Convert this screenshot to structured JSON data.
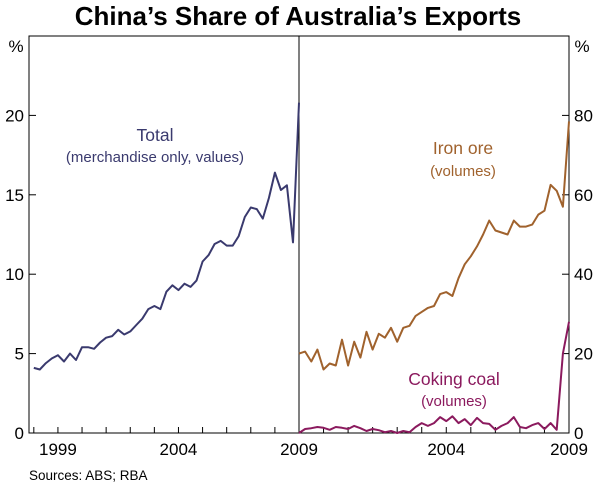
{
  "chart_data": [
    {
      "type": "line",
      "title": "China’s Share of Australia’s Exports",
      "unit_label": "%",
      "x_tick_labels": [
        "1999",
        "2004",
        "2009"
      ],
      "x_range": [
        1997.8,
        2009.0
      ],
      "ylim": [
        0,
        25
      ],
      "y_ticks": [
        0,
        5,
        10,
        15,
        20
      ],
      "grid": false,
      "series": [
        {
          "name": "Total",
          "annotation": [
            "Total",
            "(merchandise only, values)"
          ],
          "color": "#3a3a6e",
          "x": [
            1998.0,
            1998.25,
            1998.5,
            1998.75,
            1999.0,
            1999.25,
            1999.5,
            1999.75,
            2000.0,
            2000.25,
            2000.5,
            2000.75,
            2001.0,
            2001.25,
            2001.5,
            2001.75,
            2002.0,
            2002.25,
            2002.5,
            2002.75,
            2003.0,
            2003.25,
            2003.5,
            2003.75,
            2004.0,
            2004.25,
            2004.5,
            2004.75,
            2005.0,
            2005.25,
            2005.5,
            2005.75,
            2006.0,
            2006.25,
            2006.5,
            2006.75,
            2007.0,
            2007.25,
            2007.5,
            2007.75,
            2008.0,
            2008.25,
            2008.5,
            2008.75,
            2009.0
          ],
          "values": [
            4.1,
            4.0,
            4.4,
            4.7,
            4.9,
            4.5,
            5.0,
            4.6,
            5.4,
            5.4,
            5.3,
            5.7,
            6.0,
            6.1,
            6.5,
            6.2,
            6.4,
            6.8,
            7.2,
            7.8,
            8.0,
            7.8,
            8.9,
            9.3,
            9.0,
            9.4,
            9.2,
            9.6,
            10.8,
            11.2,
            11.9,
            12.1,
            11.8,
            11.8,
            12.4,
            13.6,
            14.2,
            14.1,
            13.5,
            14.8,
            16.4,
            15.3,
            15.6,
            12.0,
            20.8
          ]
        }
      ]
    },
    {
      "type": "line",
      "unit_label": "%",
      "x_tick_labels": [
        "2004",
        "2009"
      ],
      "x_range": [
        1998.0,
        2009.0
      ],
      "ylim": [
        0,
        100
      ],
      "y_ticks": [
        0,
        20,
        40,
        60,
        80
      ],
      "grid": false,
      "series": [
        {
          "name": "Iron ore",
          "annotation": [
            "Iron ore",
            "(volumes)"
          ],
          "color": "#a0622d",
          "x": [
            1998.0,
            1998.25,
            1998.5,
            1998.75,
            1999.0,
            1999.25,
            1999.5,
            1999.75,
            2000.0,
            2000.25,
            2000.5,
            2000.75,
            2001.0,
            2001.25,
            2001.5,
            2001.75,
            2002.0,
            2002.25,
            2002.5,
            2002.75,
            2003.0,
            2003.25,
            2003.5,
            2003.75,
            2004.0,
            2004.25,
            2004.5,
            2004.75,
            2005.0,
            2005.25,
            2005.5,
            2005.75,
            2006.0,
            2006.25,
            2006.5,
            2006.75,
            2007.0,
            2007.25,
            2007.5,
            2007.75,
            2008.0,
            2008.25,
            2008.5,
            2008.75,
            2009.0
          ],
          "values": [
            20,
            20.5,
            18,
            21,
            16,
            17.5,
            17,
            23.5,
            17,
            23,
            19,
            25.5,
            21,
            25,
            24,
            26.5,
            23,
            26.5,
            27,
            29.5,
            30.5,
            31.5,
            32,
            35,
            35.5,
            34.5,
            39,
            42.5,
            44.5,
            47,
            50,
            53.5,
            51,
            50.5,
            50,
            53.5,
            52,
            52,
            52.5,
            55,
            56,
            62.5,
            61,
            57,
            78.5
          ]
        },
        {
          "name": "Coking coal",
          "annotation": [
            "Coking coal",
            "(volumes)"
          ],
          "color": "#8b1a5e",
          "x": [
            1998.0,
            1998.25,
            1998.5,
            1998.75,
            1999.0,
            1999.25,
            1999.5,
            1999.75,
            2000.0,
            2000.25,
            2000.5,
            2000.75,
            2001.0,
            2001.25,
            2001.5,
            2001.75,
            2002.0,
            2002.25,
            2002.5,
            2002.75,
            2003.0,
            2003.25,
            2003.5,
            2003.75,
            2004.0,
            2004.25,
            2004.5,
            2004.75,
            2005.0,
            2005.25,
            2005.5,
            2005.75,
            2006.0,
            2006.25,
            2006.5,
            2006.75,
            2007.0,
            2007.25,
            2007.5,
            2007.75,
            2008.0,
            2008.25,
            2008.5,
            2008.75,
            2009.0
          ],
          "values": [
            0,
            1.0,
            1.2,
            1.5,
            1.3,
            0.8,
            1.5,
            1.3,
            1.0,
            1.8,
            1.2,
            0.5,
            1.0,
            0.7,
            0.2,
            0.5,
            0,
            0.5,
            0.2,
            1.5,
            2.5,
            1.8,
            2.5,
            4.0,
            3.0,
            4.2,
            2.5,
            3.5,
            2.0,
            3.8,
            2.5,
            2.3,
            0.8,
            1.8,
            2.5,
            4.0,
            1.5,
            1.2,
            2.0,
            2.5,
            1.0,
            2.5,
            0.8,
            20.0,
            28.0
          ]
        }
      ]
    }
  ],
  "source": "Sources: ABS; RBA"
}
